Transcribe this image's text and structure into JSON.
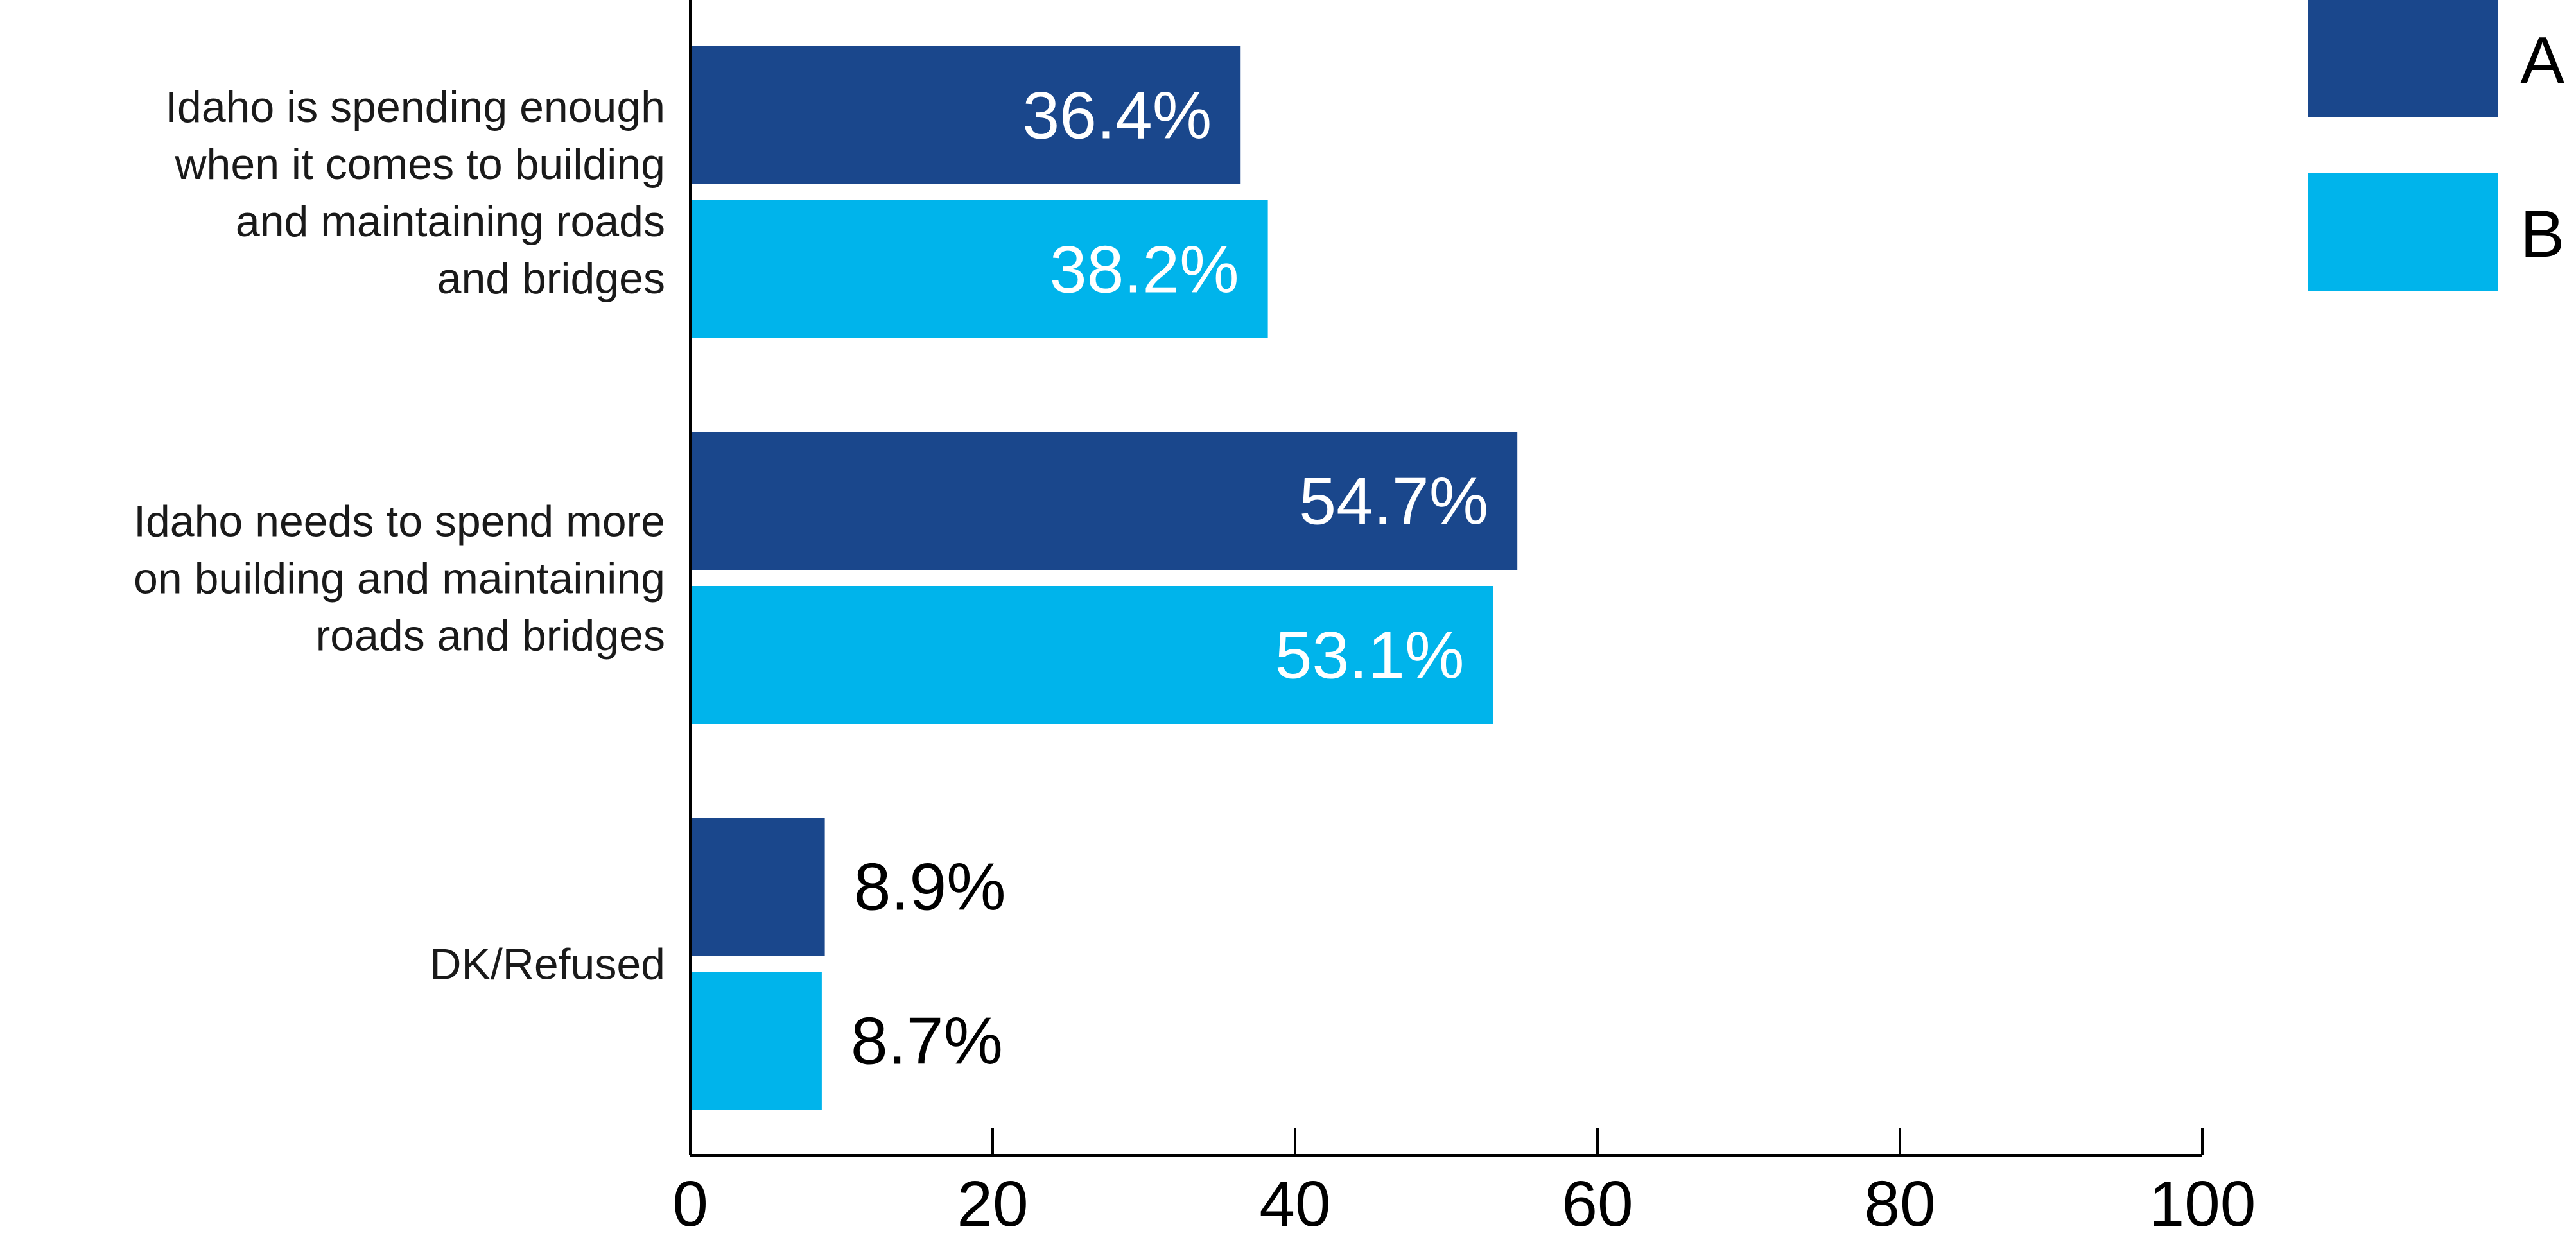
{
  "chart_data": {
    "type": "bar",
    "orientation": "horizontal",
    "categories": [
      "Idaho is spending enough when it comes to building and maintaining roads and bridges",
      "Idaho needs to spend more on building and maintaining roads and bridges",
      "DK/Refused"
    ],
    "category_lines": [
      [
        "Idaho is spending enough",
        "when it comes to building",
        "and maintaining roads",
        "and bridges"
      ],
      [
        "Idaho needs to spend more",
        "on building and maintaining",
        "roads and bridges"
      ],
      [
        "DK/Refused"
      ]
    ],
    "series": [
      {
        "name": "A",
        "color": "#1a478c",
        "values": [
          36.4,
          54.7,
          8.9
        ],
        "labels": [
          "36.4%",
          "54.7%",
          "8.9%"
        ]
      },
      {
        "name": "B",
        "color": "#00b4eb",
        "values": [
          38.2,
          53.1,
          8.7
        ],
        "labels": [
          "38.2%",
          "53.1%",
          "8.7%"
        ]
      }
    ],
    "xlim": [
      0,
      100
    ],
    "xticks": [
      0,
      20,
      40,
      60,
      80,
      100
    ],
    "xlabel": "",
    "ylabel": "",
    "title": "",
    "grid": false,
    "legend_position": "top-right"
  }
}
